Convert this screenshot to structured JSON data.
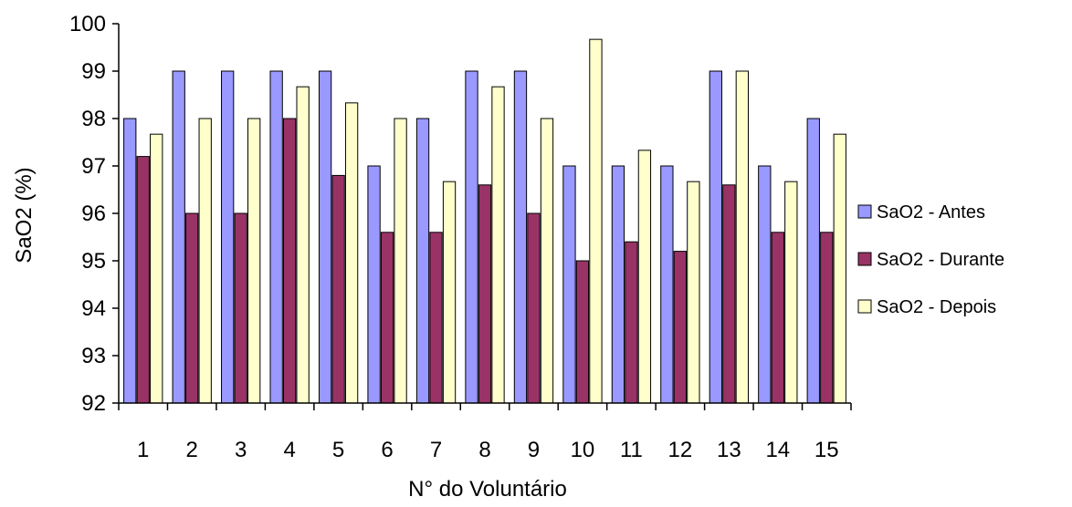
{
  "chart_data": {
    "type": "bar",
    "xlabel": "N° do Voluntário",
    "ylabel": "SaO2 (%)",
    "ylim": [
      92,
      100
    ],
    "yticks": [
      92,
      93,
      94,
      95,
      96,
      97,
      98,
      99,
      100
    ],
    "categories": [
      "1",
      "2",
      "3",
      "4",
      "5",
      "6",
      "7",
      "8",
      "9",
      "10",
      "11",
      "12",
      "13",
      "14",
      "15"
    ],
    "series": [
      {
        "name": "SaO2 - Antes",
        "color": "#9999ff",
        "values": [
          98,
          99,
          99,
          99,
          99,
          97,
          98,
          99,
          99,
          97,
          97,
          97,
          99,
          97,
          98
        ]
      },
      {
        "name": "SaO2 - Durante",
        "color": "#993366",
        "values": [
          97.2,
          96,
          96,
          98,
          96.8,
          95.6,
          95.6,
          96.6,
          96,
          95,
          95.4,
          95.2,
          96.6,
          95.6,
          95.6
        ]
      },
      {
        "name": "SaO2 - Depois",
        "color": "#ffffcc",
        "values": [
          97.67,
          98,
          98,
          98.67,
          98.33,
          98,
          96.67,
          98.67,
          98,
          99.67,
          97.33,
          96.67,
          99,
          96.67,
          97.67
        ]
      }
    ],
    "legend_position": "right",
    "grid": false
  }
}
